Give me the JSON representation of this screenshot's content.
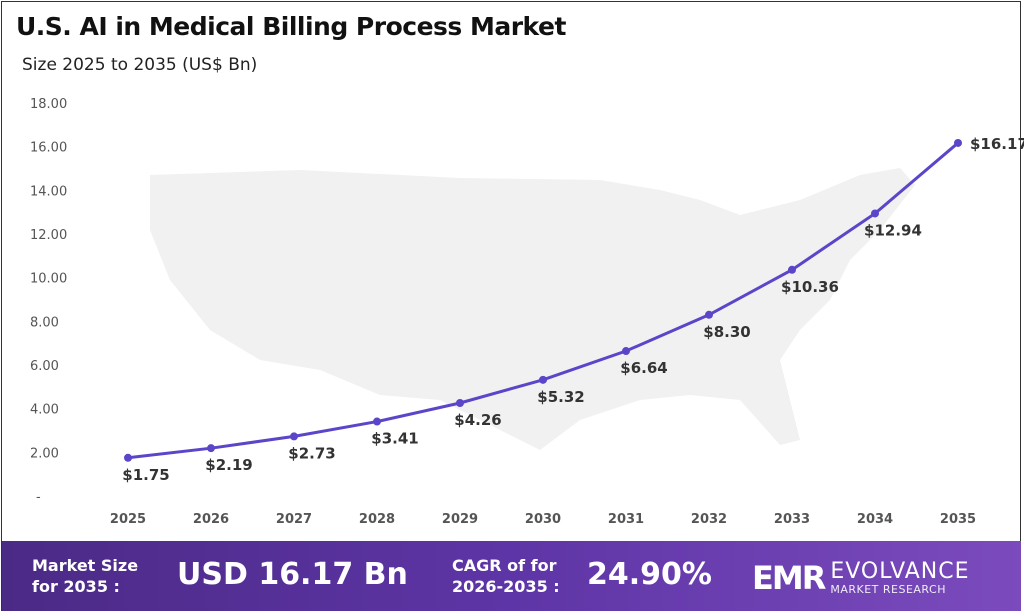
{
  "chart_data": {
    "type": "line",
    "title": "U.S. AI in Medical Billing Process Market",
    "subtitle": "Size 2025 to 2035 (US$ Bn)",
    "x": [
      "2025",
      "2026",
      "2027",
      "2028",
      "2029",
      "2030",
      "2031",
      "2032",
      "2033",
      "2034",
      "2035"
    ],
    "values": [
      1.75,
      2.19,
      2.73,
      3.41,
      4.26,
      5.32,
      6.64,
      8.3,
      10.36,
      12.94,
      16.17
    ],
    "data_labels": [
      "$1.75",
      "$2.19",
      "$2.73",
      "$3.41",
      "$4.26",
      "$5.32",
      "$6.64",
      "$8.30",
      "$10.36",
      "$12.94",
      "$16.17"
    ],
    "y_ticks": [
      "-",
      "2.00",
      "4.00",
      "6.00",
      "8.00",
      "10.00",
      "12.00",
      "14.00",
      "16.00",
      "18.00"
    ],
    "ylim": [
      0,
      18
    ],
    "grid": false,
    "line_color": "#5b45c9",
    "background": "U.S. map silhouette"
  },
  "banner": {
    "market_size_label_1": "Market Size",
    "market_size_label_2": "for 2035 :",
    "market_size_value": "USD 16.17 Bn",
    "cagr_label_1": "CAGR of for",
    "cagr_label_2": "2026-2035 :",
    "cagr_value": "24.90%",
    "logo_mark": "EMR",
    "logo_name": "EVOLVANCE",
    "logo_sub": "MARKET RESEARCH"
  }
}
